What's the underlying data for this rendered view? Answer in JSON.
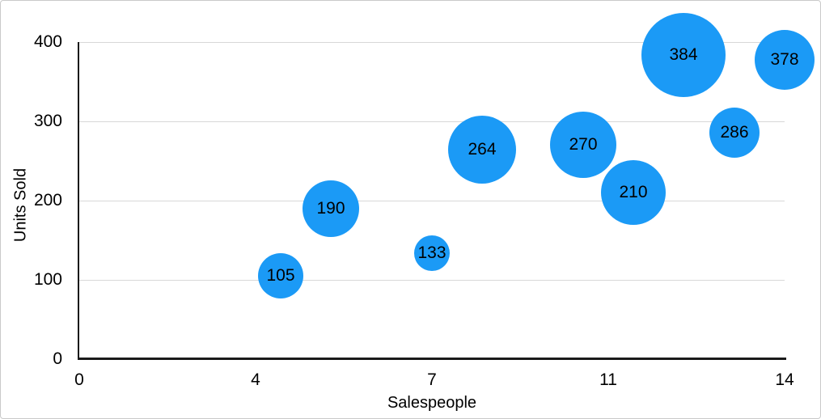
{
  "chart_data": {
    "type": "bubble",
    "title": "",
    "xlabel": "Salespeople",
    "ylabel": "Units Sold",
    "xlim": [
      0,
      14
    ],
    "ylim": [
      0,
      400
    ],
    "grid": "horizontal-gridlines",
    "legend": "none",
    "x_ticks": [
      {
        "value": 0,
        "label": "0"
      },
      {
        "value": 3.5,
        "label": "4"
      },
      {
        "value": 7,
        "label": "7"
      },
      {
        "value": 10.5,
        "label": "11"
      },
      {
        "value": 14,
        "label": "14"
      }
    ],
    "y_ticks": [
      {
        "value": 0,
        "label": "0"
      },
      {
        "value": 100,
        "label": "100"
      },
      {
        "value": 200,
        "label": "200"
      },
      {
        "value": 300,
        "label": "300"
      },
      {
        "value": 400,
        "label": "400"
      }
    ],
    "points": [
      {
        "x": 4,
        "y": 105,
        "label": "105",
        "radius_px": 28
      },
      {
        "x": 5,
        "y": 190,
        "label": "190",
        "radius_px": 35
      },
      {
        "x": 7,
        "y": 133,
        "label": "133",
        "radius_px": 22
      },
      {
        "x": 8,
        "y": 264,
        "label": "264",
        "radius_px": 42
      },
      {
        "x": 10,
        "y": 270,
        "label": "270",
        "radius_px": 41
      },
      {
        "x": 11,
        "y": 210,
        "label": "210",
        "radius_px": 40
      },
      {
        "x": 12,
        "y": 384,
        "label": "384",
        "radius_px": 52
      },
      {
        "x": 13,
        "y": 286,
        "label": "286",
        "radius_px": 31
      },
      {
        "x": 14,
        "y": 378,
        "label": "378",
        "radius_px": 37
      }
    ],
    "colors": {
      "bubble": "#1B9AF6",
      "bubble_label": "#000000",
      "axis_line": "#1A1A1A",
      "gridline": "#D8D8D8",
      "tick_label": "#000000",
      "frame_border": "#C9C9C9",
      "background": "#FFFFFF"
    }
  }
}
